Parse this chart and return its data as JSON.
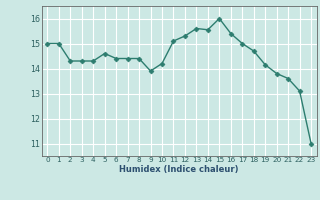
{
  "x": [
    0,
    1,
    2,
    3,
    4,
    5,
    6,
    7,
    8,
    9,
    10,
    11,
    12,
    13,
    14,
    15,
    16,
    17,
    18,
    19,
    20,
    21,
    22,
    23
  ],
  "y": [
    15.0,
    15.0,
    14.3,
    14.3,
    14.3,
    14.6,
    14.4,
    14.4,
    14.4,
    13.9,
    14.2,
    15.1,
    15.3,
    15.6,
    15.55,
    16.0,
    15.4,
    15.0,
    14.7,
    14.15,
    13.8,
    13.6,
    13.1,
    11.0
  ],
  "xlabel": "Humidex (Indice chaleur)",
  "xlim": [
    -0.5,
    23.5
  ],
  "ylim": [
    10.5,
    16.5
  ],
  "yticks": [
    11,
    12,
    13,
    14,
    15,
    16
  ],
  "xticks": [
    0,
    1,
    2,
    3,
    4,
    5,
    6,
    7,
    8,
    9,
    10,
    11,
    12,
    13,
    14,
    15,
    16,
    17,
    18,
    19,
    20,
    21,
    22,
    23
  ],
  "line_color": "#2d7d6f",
  "marker": "D",
  "marker_size": 2.5,
  "bg_color": "#cce8e4",
  "grid_major_color": "#ffffff",
  "grid_minor_color": "#e0f0ee",
  "axes_color": "#666666",
  "tick_color": "#2d6060",
  "xlabel_color": "#2d5070",
  "tick_fontsize": 5.2,
  "xlabel_fontsize": 6.0
}
